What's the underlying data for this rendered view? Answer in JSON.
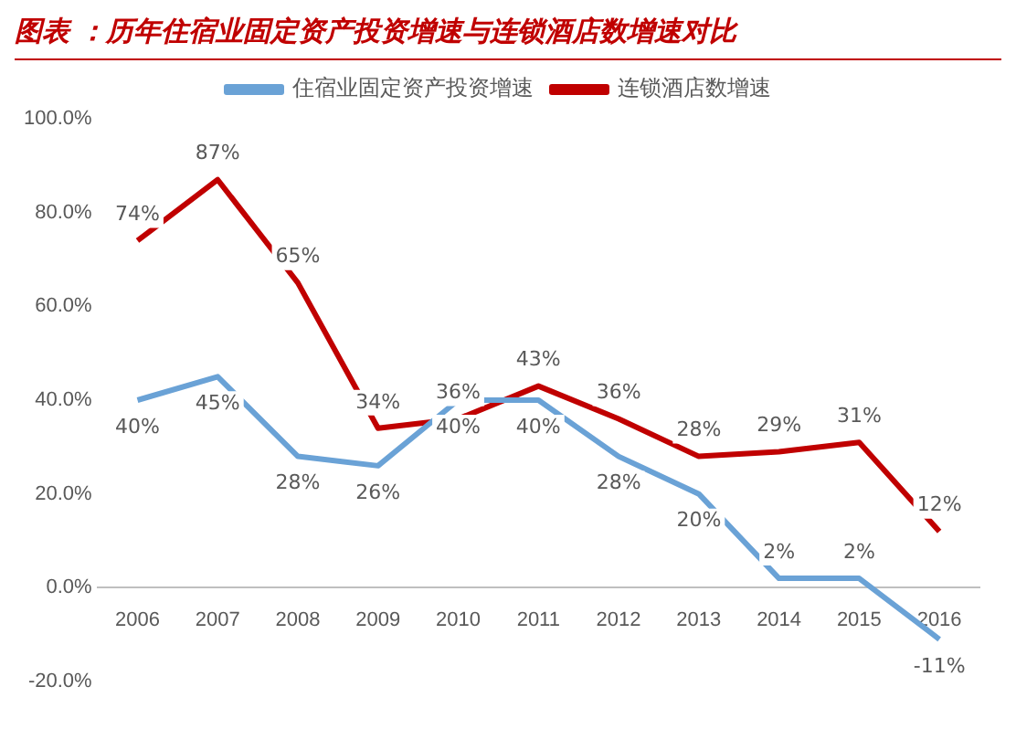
{
  "chart_data": {
    "type": "line",
    "title": "图表 ：历年住宿业固定资产投资增速与连锁酒店数增速对比",
    "categories": [
      "2006",
      "2007",
      "2008",
      "2009",
      "2010",
      "2011",
      "2012",
      "2013",
      "2014",
      "2015",
      "2016"
    ],
    "series": [
      {
        "name": "住宿业固定资产投资增速",
        "color": "#6aa2d6",
        "values": [
          40,
          45,
          28,
          26,
          40,
          40,
          28,
          20,
          2,
          2,
          -11
        ],
        "value_labels": [
          "40%",
          "45%",
          "28%",
          "26%",
          "40%",
          "40%",
          "28%",
          "20%",
          "2%",
          "2%",
          "-11%"
        ]
      },
      {
        "name": "连锁酒店数增速",
        "color": "#c00000",
        "values": [
          74,
          87,
          65,
          34,
          36,
          43,
          36,
          28,
          29,
          31,
          12
        ],
        "value_labels": [
          "74%",
          "87%",
          "65%",
          "34%",
          "36%",
          "43%",
          "36%",
          "28%",
          "29%",
          "31%",
          "12%"
        ]
      }
    ],
    "ylim": [
      -20,
      100
    ],
    "yticks": [
      {
        "value": -20,
        "label": "-20.0%"
      },
      {
        "value": 0,
        "label": "0.0%"
      },
      {
        "value": 20,
        "label": "20.0%"
      },
      {
        "value": 40,
        "label": "40.0%"
      },
      {
        "value": 60,
        "label": "60.0%"
      },
      {
        "value": 80,
        "label": "80.0%"
      },
      {
        "value": 100,
        "label": "100.0%"
      }
    ],
    "grid": false,
    "legend": "top",
    "marker": "none",
    "line_style": "solid"
  }
}
